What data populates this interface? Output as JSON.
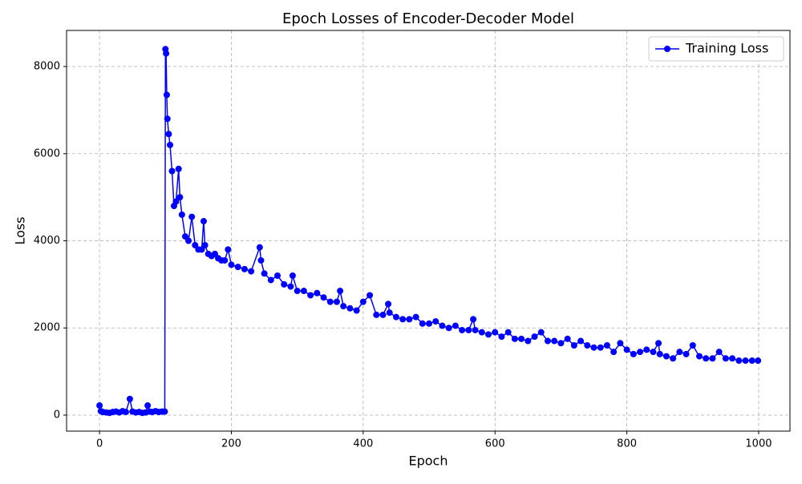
{
  "chart_data": {
    "type": "line",
    "title": "Epoch Losses of Encoder-Decoder Model",
    "x_label": "Epoch",
    "y_label": "Loss",
    "x": [
      0,
      2,
      5,
      10,
      15,
      20,
      25,
      30,
      35,
      40,
      46,
      50,
      55,
      60,
      65,
      70,
      73,
      76,
      80,
      85,
      90,
      95,
      99,
      100,
      101,
      102,
      103,
      105,
      107,
      110,
      113,
      116,
      120,
      122,
      125,
      130,
      135,
      140,
      145,
      150,
      155,
      158,
      160,
      165,
      170,
      175,
      180,
      185,
      190,
      195,
      200,
      210,
      220,
      230,
      243,
      245,
      250,
      260,
      270,
      280,
      290,
      293,
      300,
      310,
      320,
      330,
      340,
      350,
      360,
      365,
      370,
      380,
      390,
      400,
      410,
      420,
      430,
      438,
      440,
      450,
      460,
      470,
      480,
      490,
      500,
      510,
      520,
      530,
      540,
      550,
      560,
      567,
      570,
      580,
      590,
      600,
      610,
      620,
      630,
      640,
      650,
      660,
      670,
      680,
      690,
      700,
      710,
      720,
      730,
      740,
      750,
      760,
      770,
      780,
      790,
      800,
      810,
      820,
      830,
      840,
      848,
      850,
      860,
      870,
      880,
      890,
      900,
      910,
      920,
      930,
      940,
      950,
      960,
      970,
      980,
      990,
      999
    ],
    "series": [
      {
        "name": "Training Loss",
        "color": "#0000ff",
        "values": [
          220,
          90,
          70,
          60,
          50,
          70,
          80,
          60,
          90,
          70,
          370,
          80,
          60,
          70,
          50,
          60,
          220,
          80,
          70,
          90,
          70,
          80,
          80,
          8400,
          8300,
          7350,
          6800,
          6450,
          6200,
          5600,
          4800,
          4900,
          5650,
          5000,
          4600,
          4100,
          4000,
          4550,
          3900,
          3800,
          3800,
          4450,
          3900,
          3700,
          3650,
          3700,
          3600,
          3550,
          3550,
          3800,
          3450,
          3400,
          3350,
          3300,
          3850,
          3550,
          3250,
          3100,
          3200,
          3000,
          2950,
          3200,
          2850,
          2850,
          2750,
          2800,
          2700,
          2600,
          2600,
          2850,
          2500,
          2450,
          2400,
          2600,
          2750,
          2300,
          2300,
          2550,
          2350,
          2250,
          2200,
          2200,
          2250,
          2100,
          2100,
          2150,
          2050,
          2000,
          2050,
          1950,
          1950,
          2200,
          1950,
          1900,
          1850,
          1900,
          1800,
          1900,
          1750,
          1750,
          1700,
          1800,
          1900,
          1700,
          1700,
          1650,
          1750,
          1600,
          1700,
          1600,
          1550,
          1550,
          1600,
          1450,
          1650,
          1500,
          1400,
          1450,
          1500,
          1450,
          1650,
          1400,
          1350,
          1300,
          1450,
          1400,
          1600,
          1350,
          1300,
          1300,
          1450,
          1300,
          1300,
          1250,
          1250,
          1250,
          1250
        ]
      }
    ],
    "xlim": [
      -50,
      1047.5
    ],
    "ylim": [
      -368,
      8828
    ],
    "xticks": [
      0,
      200,
      400,
      600,
      800,
      1000
    ],
    "yticks": [
      0,
      2000,
      4000,
      6000,
      8000
    ],
    "grid": true,
    "legend": "upper right"
  }
}
